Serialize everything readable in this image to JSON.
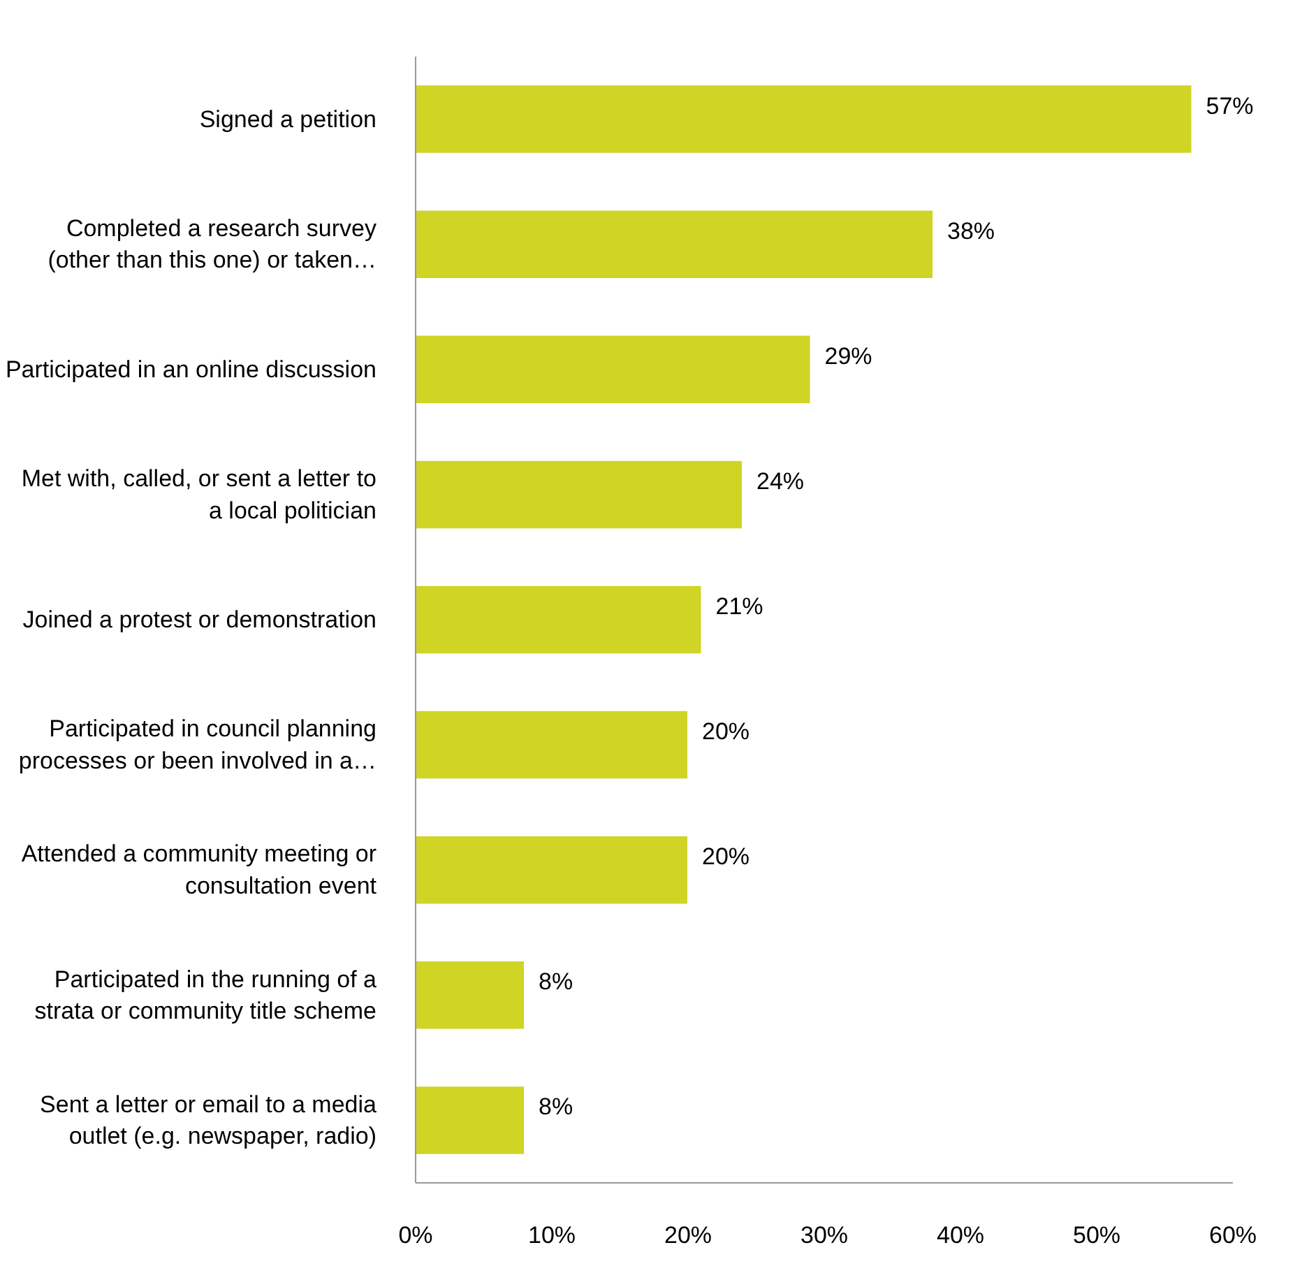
{
  "chart_data": {
    "type": "bar",
    "orientation": "horizontal",
    "categories": [
      "Signed a petition",
      "Completed a research survey\n(other than this one) or taken…",
      "Participated in an online discussion",
      "Met with, called, or sent a letter to\na local politician",
      "Joined a protest or demonstration",
      "Participated in council planning\nprocesses or been involved in a…",
      "Attended a community meeting or\nconsultation event",
      "Participated in the running of a\nstrata or community title scheme",
      "Sent a letter or email to a media\noutlet (e.g. newspaper, radio)"
    ],
    "values": [
      57,
      38,
      29,
      24,
      21,
      20,
      20,
      8,
      8
    ],
    "value_labels": [
      "57%",
      "38%",
      "29%",
      "24%",
      "21%",
      "20%",
      "20%",
      "8%",
      "8%"
    ],
    "color": "#d0d424",
    "xlim": [
      0,
      60
    ],
    "xticks": [
      {
        "value": 0,
        "label": "0%"
      },
      {
        "value": 10,
        "label": "10%"
      },
      {
        "value": 20,
        "label": "20%"
      },
      {
        "value": 30,
        "label": "30%"
      },
      {
        "value": 40,
        "label": "40%"
      },
      {
        "value": 50,
        "label": "50%"
      },
      {
        "value": 60,
        "label": "60%"
      }
    ],
    "grid": false
  }
}
